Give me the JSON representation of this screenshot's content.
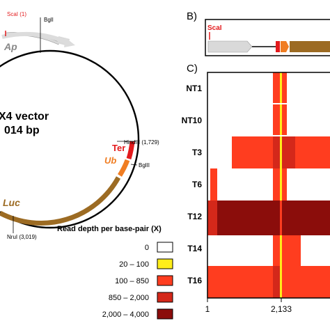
{
  "panelB": {
    "letter": "B)",
    "site_label": "ScaI",
    "colors": {
      "ap": "#d9d9d9",
      "ter": "#e31a1c",
      "ub": "#f07d22",
      "luc": "#9c6b23"
    }
  },
  "panelC": {
    "letter": "C)",
    "samples": [
      "NT1",
      "NT10",
      "T3",
      "T6",
      "T12",
      "T14",
      "T16"
    ],
    "x_ticks": [
      "1",
      "2,133"
    ]
  },
  "plasmid": {
    "title_line1": "X4 vector",
    "title_line2": "014 bp",
    "features": [
      {
        "name": "Ap",
        "color": "#d9d9d9"
      },
      {
        "name": "Ter",
        "color": "#e31a1c"
      },
      {
        "name": "Ub",
        "color": "#f07d22"
      },
      {
        "name": "Luc",
        "color": "#9c6b23"
      }
    ],
    "sites": {
      "scai": "ScaI (1)",
      "bgli": "BglI",
      "hindiii": "HindIII (1,729)",
      "bglii": "BglII",
      "nrui": "NruI (3,019)"
    }
  },
  "legend": {
    "title": "Read depth per base-pair (X)",
    "items": [
      {
        "label": "0",
        "color": "#ffffff"
      },
      {
        "label": "20 – 100",
        "color": "#ffee1a"
      },
      {
        "label": "100 – 850",
        "color": "#ff3d1f"
      },
      {
        "label": "850 – 2,000",
        "color": "#d4281a"
      },
      {
        "label": "2,000 – 4,000",
        "color": "#8b0d0b"
      }
    ]
  }
}
